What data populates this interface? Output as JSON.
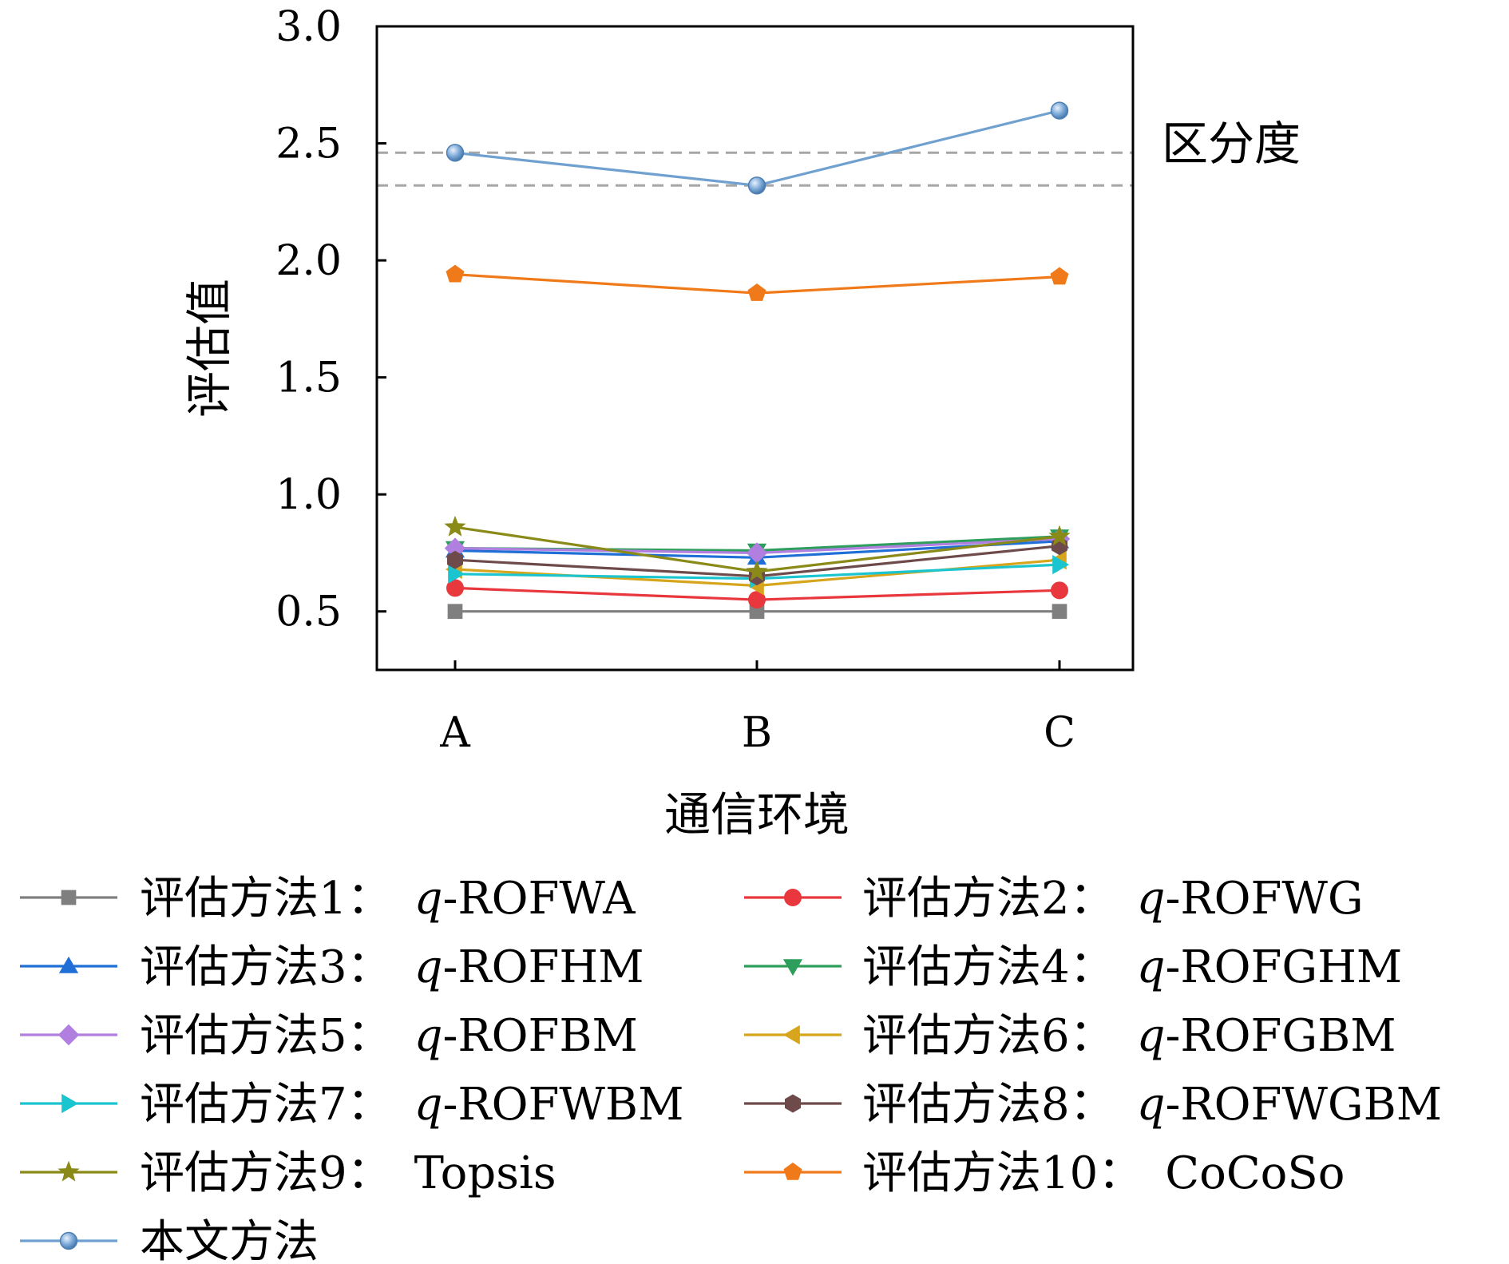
{
  "chart_data": {
    "type": "line",
    "xlabel": "通信环境",
    "ylabel": "评估值",
    "categories": [
      "A",
      "B",
      "C"
    ],
    "ylim": [
      0.25,
      3.0
    ],
    "yticks": [
      "0.5",
      "1.0",
      "1.5",
      "2.0",
      "2.5",
      "3.0"
    ],
    "ytick_values": [
      0.5,
      1.0,
      1.5,
      2.0,
      2.5,
      3.0
    ],
    "grid": false,
    "legend_position": "bottom",
    "annotation": {
      "text": "区分度",
      "lines": [
        2.46,
        2.32
      ],
      "line_color": "#a6a6a6"
    },
    "series": [
      {
        "prefix": "评估方法1：",
        "italic": "q",
        "suffix": "-ROFWA",
        "values": [
          0.5,
          0.5,
          0.5
        ],
        "color": "#7f7f7f",
        "marker": "square"
      },
      {
        "prefix": "评估方法2：",
        "italic": "q",
        "suffix": "-ROFWG",
        "values": [
          0.6,
          0.55,
          0.59
        ],
        "color": "#e8383d",
        "marker": "circle"
      },
      {
        "prefix": "评估方法3：",
        "italic": "q",
        "suffix": "-ROFHM",
        "values": [
          0.76,
          0.73,
          0.8
        ],
        "color": "#1f6fd6",
        "marker": "triangle-up"
      },
      {
        "prefix": "评估方法4：",
        "italic": "q",
        "suffix": "-ROFGHM",
        "values": [
          0.77,
          0.76,
          0.82
        ],
        "color": "#2e9e5c",
        "marker": "triangle-down"
      },
      {
        "prefix": "评估方法5：",
        "italic": "q",
        "suffix": "-ROFBM",
        "values": [
          0.77,
          0.75,
          0.81
        ],
        "color": "#b07fe0",
        "marker": "diamond"
      },
      {
        "prefix": "评估方法6：",
        "italic": "q",
        "suffix": "-ROFGBM",
        "values": [
          0.68,
          0.61,
          0.72
        ],
        "color": "#d6a51c",
        "marker": "triangle-left"
      },
      {
        "prefix": "评估方法7：",
        "italic": "q",
        "suffix": "-ROFWBM",
        "values": [
          0.66,
          0.64,
          0.7
        ],
        "color": "#1bc5cf",
        "marker": "triangle-right"
      },
      {
        "prefix": "评估方法8：",
        "italic": "q",
        "suffix": "-ROFWGBM",
        "values": [
          0.72,
          0.65,
          0.78
        ],
        "color": "#6e4a4a",
        "marker": "hexagon"
      },
      {
        "prefix": "评估方法9：",
        "italic": "",
        "suffix": "Topsis",
        "values": [
          0.86,
          0.67,
          0.82
        ],
        "color": "#8a8a18",
        "marker": "star"
      },
      {
        "prefix": "评估方法10：",
        "italic": "",
        "suffix": "CoCoSo",
        "values": [
          1.94,
          1.86,
          1.93
        ],
        "color": "#f07a1a",
        "marker": "pentagon"
      },
      {
        "prefix": "本文方法",
        "italic": "",
        "suffix": "",
        "values": [
          2.46,
          2.32,
          2.64
        ],
        "color": "#6fa0cf",
        "marker": "sphere"
      }
    ]
  }
}
